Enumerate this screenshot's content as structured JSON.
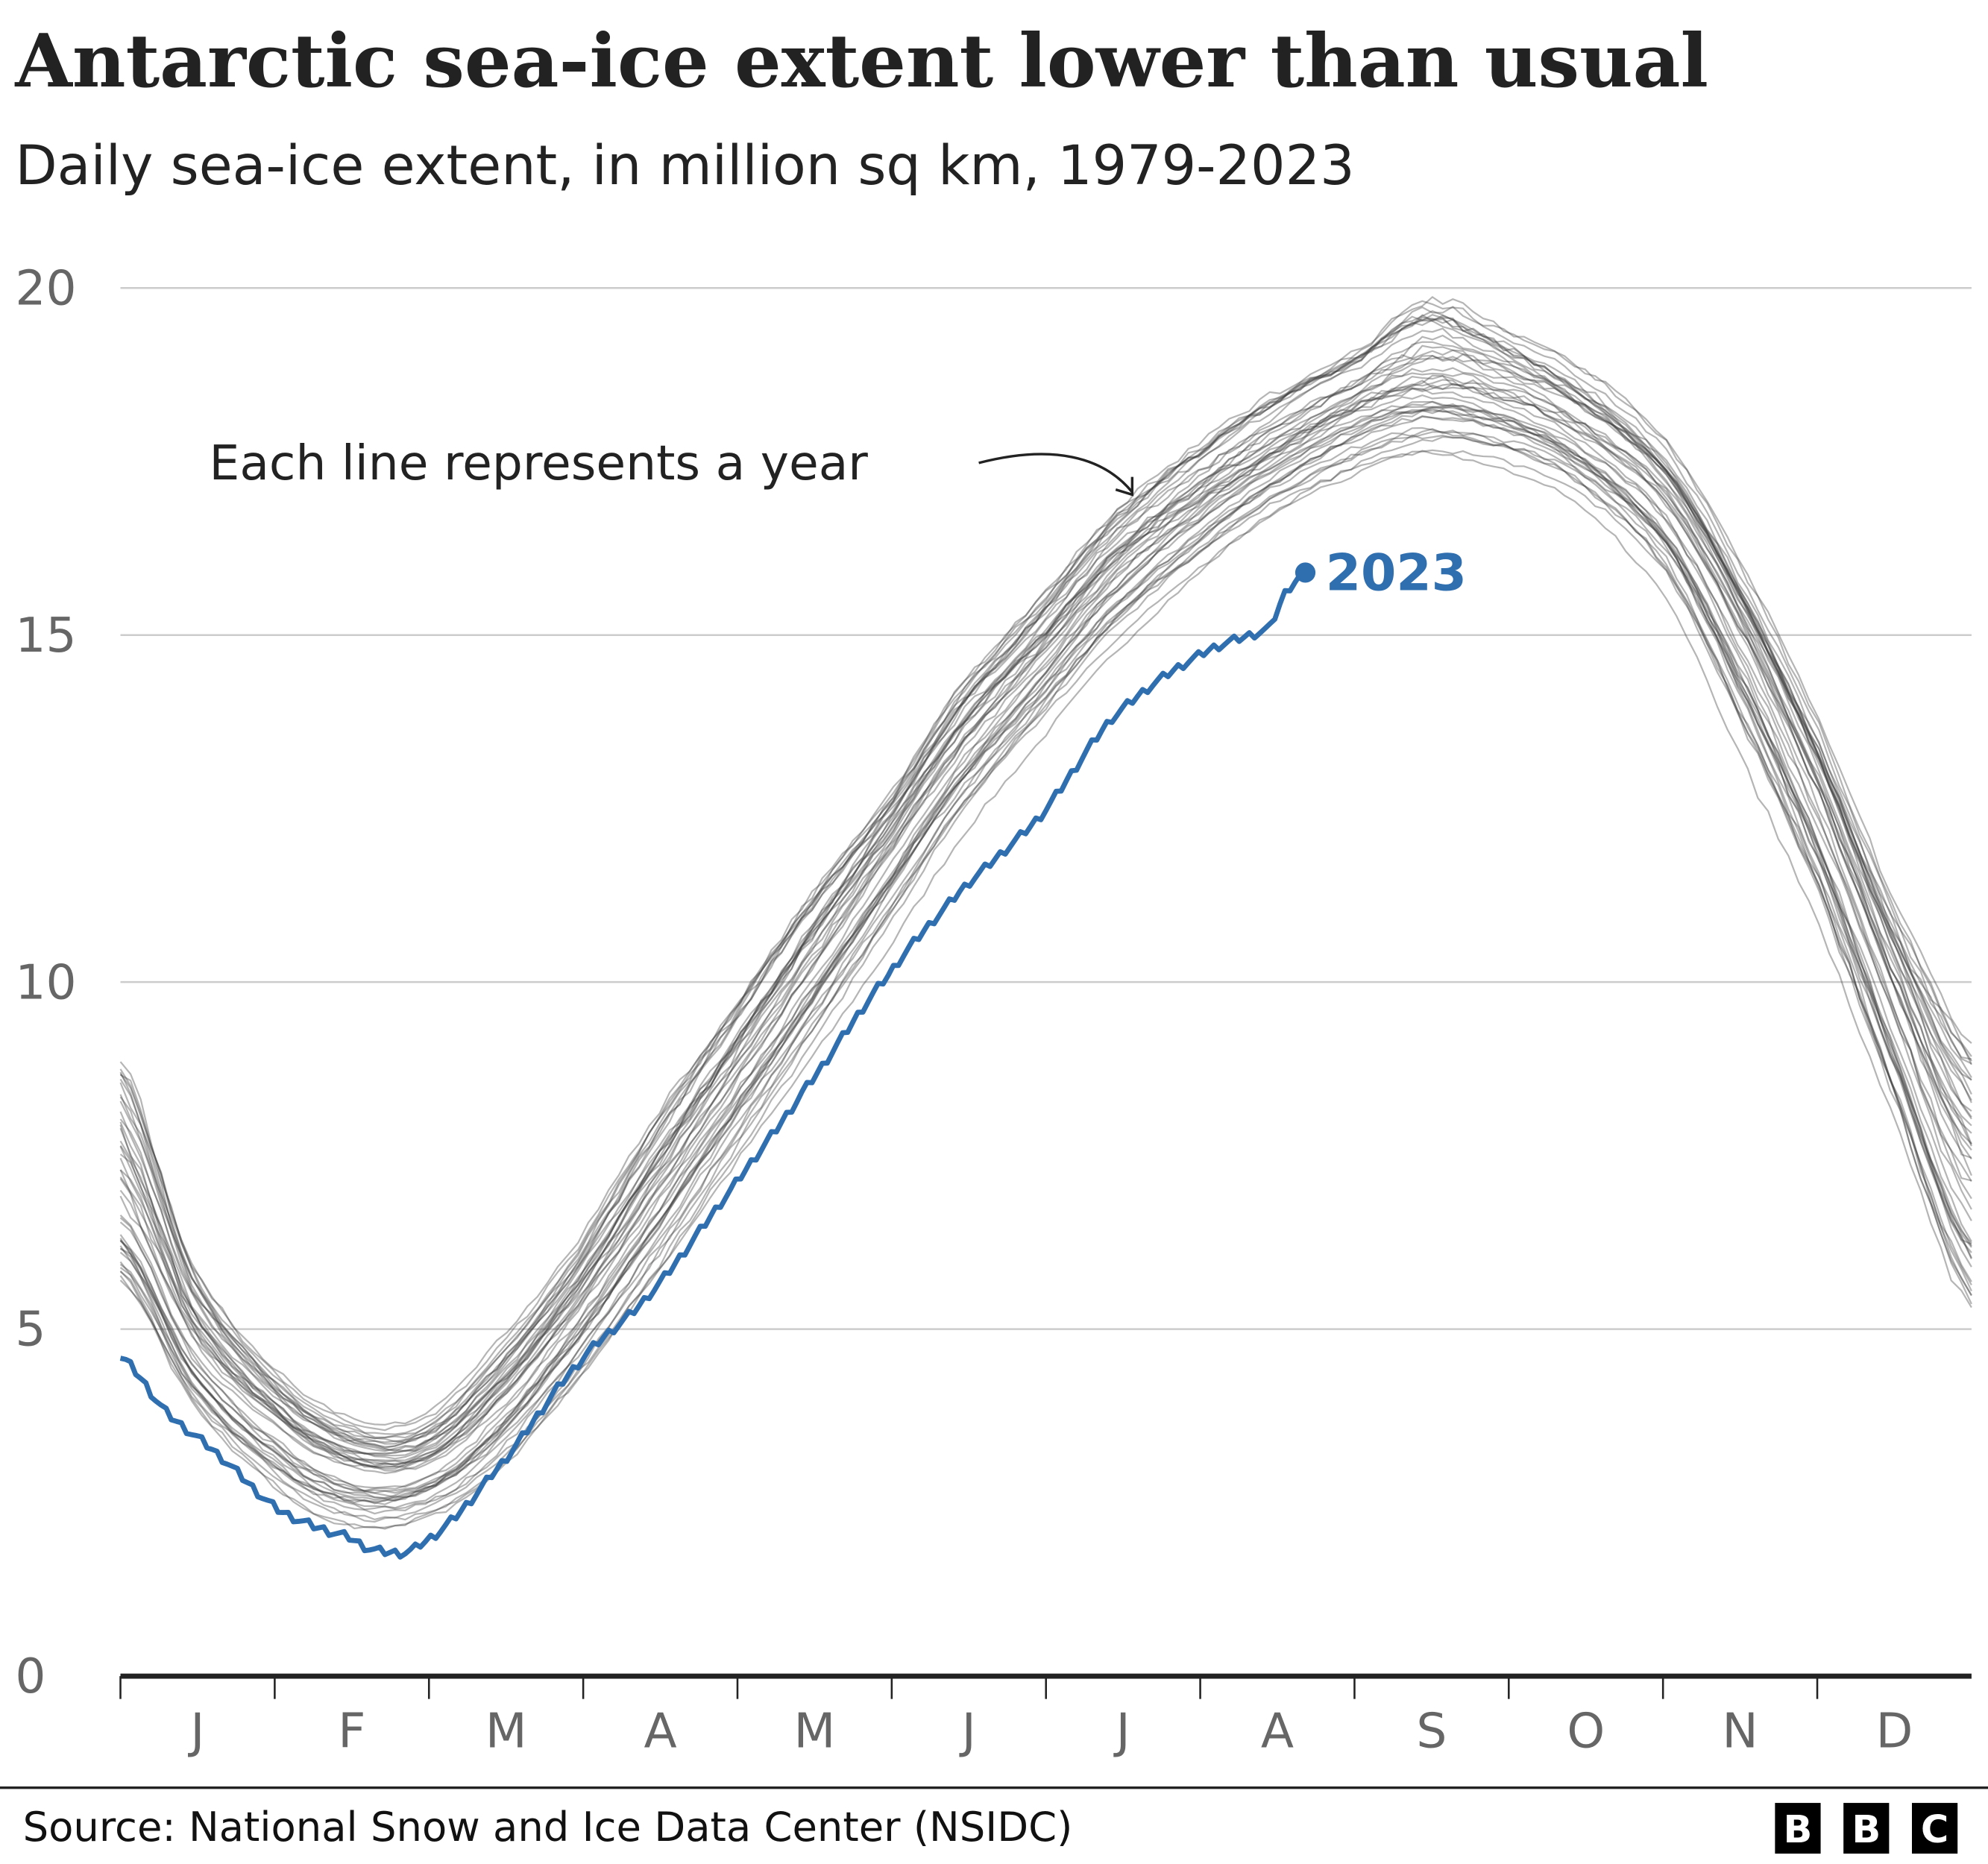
{
  "title": "Antarctic sea-ice extent lower than usual",
  "subtitle": "Daily sea-ice extent, in million sq km, 1979-2023",
  "annotation": "Each line represents a year",
  "source": "Source: National Snow and Ice Data Center (NSIDC)",
  "logo": [
    "B",
    "B",
    "C"
  ],
  "colors": {
    "highlight": "#2f6fb0",
    "years": "#555555",
    "grid": "#cccccc",
    "axis": "#222222"
  },
  "chart_data": {
    "type": "line",
    "title": "Antarctic sea-ice extent lower than usual",
    "ylabel": "",
    "xlabel": "",
    "ylim": [
      0,
      20
    ],
    "yticks": [
      0,
      5,
      10,
      15,
      20
    ],
    "xticks": [
      "J",
      "F",
      "M",
      "A",
      "M",
      "J",
      "J",
      "A",
      "S",
      "O",
      "N",
      "D"
    ],
    "grid": true,
    "years_shown": "1979-2023",
    "x_unit": "day of year",
    "climatology": {
      "day": [
        1,
        15,
        32,
        46,
        60,
        74,
        91,
        105,
        121,
        135,
        152,
        166,
        182,
        196,
        213,
        227,
        244,
        258,
        274,
        288,
        305,
        319,
        335,
        349,
        365
      ],
      "median": [
        6.8,
        4.8,
        3.6,
        3.0,
        3.0,
        3.8,
        5.3,
        6.8,
        8.5,
        10.0,
        11.8,
        13.3,
        14.6,
        15.8,
        16.8,
        17.5,
        18.2,
        18.5,
        18.3,
        17.8,
        16.8,
        15.0,
        12.5,
        9.8,
        7.0
      ],
      "min": [
        5.5,
        3.8,
        2.6,
        2.1,
        2.2,
        2.8,
        4.2,
        5.6,
        7.3,
        8.8,
        10.6,
        12.2,
        13.6,
        14.8,
        15.9,
        16.7,
        17.3,
        17.6,
        17.4,
        16.9,
        15.6,
        13.4,
        10.8,
        8.0,
        4.9
      ],
      "max": [
        9.4,
        6.2,
        4.5,
        3.8,
        3.8,
        4.8,
        6.4,
        8.2,
        9.9,
        11.5,
        13.0,
        14.6,
        15.9,
        17.1,
        18.1,
        18.8,
        19.4,
        20.2,
        19.6,
        19.0,
        17.9,
        16.2,
        13.9,
        11.5,
        9.6
      ]
    },
    "series": [
      {
        "name": "2023",
        "day": [
          1,
          10,
          20,
          32,
          46,
          52,
          60,
          74,
          91,
          105,
          121,
          135,
          152,
          166,
          182,
          196,
          213,
          227,
          230,
          234
        ],
        "value": [
          4.6,
          3.8,
          3.2,
          2.4,
          2.0,
          1.8,
          1.9,
          2.9,
          4.5,
          5.5,
          7.0,
          8.4,
          10.1,
          11.3,
          12.4,
          13.8,
          14.7,
          15.1,
          15.6,
          15.9
        ]
      }
    ]
  }
}
